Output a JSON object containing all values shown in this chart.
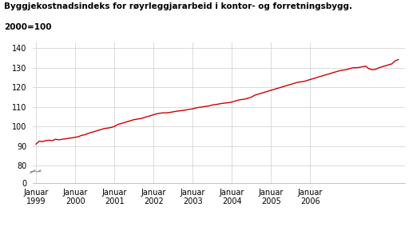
{
  "title_line1": "Byggjekostnadsindeks for røyrleggjararbeid i kontor- og forretningsbygg.",
  "title_line2": "2000=100",
  "background_color": "#ffffff",
  "plot_bg_color": "#ffffff",
  "line_color": "#cc0000",
  "line_width": 1.0,
  "grid_color": "#cccccc",
  "yticks": [
    0,
    80,
    90,
    100,
    110,
    120,
    130,
    140
  ],
  "ylim_main": [
    78,
    142
  ],
  "ylim_break": [
    0,
    3
  ],
  "xtick_labels": [
    "Januar\n1999",
    "Januar\n2000",
    "Januar\n2001",
    "Januar\n2002",
    "Januar\n2003",
    "Januar\n2004",
    "Januar\n2005",
    "Januar\n2006"
  ],
  "values": [
    91.0,
    92.5,
    92.3,
    92.8,
    93.0,
    92.8,
    93.5,
    93.2,
    93.5,
    93.7,
    94.0,
    94.2,
    94.5,
    94.8,
    95.5,
    95.8,
    96.5,
    97.0,
    97.5,
    98.0,
    98.5,
    99.0,
    99.2,
    99.5,
    100.0,
    101.0,
    101.5,
    102.0,
    102.5,
    103.0,
    103.5,
    103.8,
    104.0,
    104.5,
    105.0,
    105.5,
    106.0,
    106.5,
    106.8,
    107.0,
    107.0,
    107.2,
    107.5,
    107.8,
    108.0,
    108.2,
    108.5,
    108.8,
    109.0,
    109.5,
    109.8,
    110.0,
    110.3,
    110.5,
    111.0,
    111.2,
    111.5,
    111.8,
    112.0,
    112.2,
    112.5,
    113.0,
    113.5,
    113.8,
    114.0,
    114.5,
    115.0,
    116.0,
    116.5,
    117.0,
    117.5,
    118.0,
    118.5,
    119.0,
    119.5,
    120.0,
    120.5,
    121.0,
    121.5,
    122.0,
    122.5,
    122.8,
    123.0,
    123.5,
    124.0,
    124.5,
    125.0,
    125.5,
    126.0,
    126.5,
    127.0,
    127.5,
    128.0,
    128.5,
    128.8,
    129.0,
    129.5,
    130.0,
    130.0,
    130.2,
    130.5,
    130.8,
    129.5,
    129.0,
    129.2,
    130.0,
    130.5,
    131.0,
    131.5,
    132.0,
    133.5,
    134.2
  ]
}
